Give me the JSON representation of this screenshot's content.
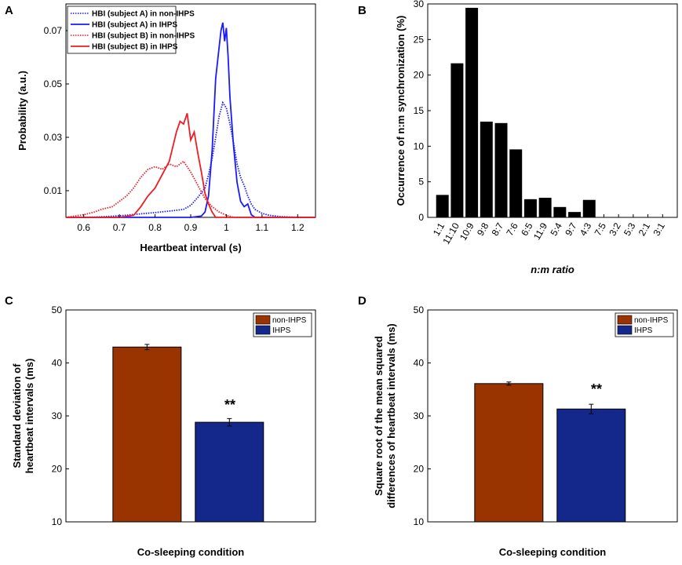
{
  "panels": {
    "a": "A",
    "b": "B",
    "c": "C",
    "d": "D"
  },
  "colors": {
    "blue": "#1a1aff",
    "red": "#ee1c25",
    "black": "#000000",
    "rust": "#993300",
    "navy": "#14288c"
  },
  "chart_data": [
    {
      "id": "A",
      "type": "line",
      "title": "",
      "xlabel": "Heartbeat interval (s)",
      "ylabel": "Probability (a.u.)",
      "xlim": [
        0.55,
        1.25
      ],
      "ylim": [
        0,
        0.08
      ],
      "xticks": [
        "0.6",
        "0.7",
        "0.8",
        "0.9",
        "1",
        "1.1",
        "1.2"
      ],
      "yticks": [
        "0.01",
        "0.03",
        "0.05",
        "0.07"
      ],
      "legend_position": "top-left",
      "series": [
        {
          "name": "HBI (subject A) in non-IHPS",
          "color": "blue",
          "style": "dotted",
          "x": [
            0.55,
            0.6,
            0.65,
            0.7,
            0.75,
            0.8,
            0.85,
            0.88,
            0.9,
            0.92,
            0.94,
            0.95,
            0.96,
            0.97,
            0.98,
            0.99,
            1.0,
            1.01,
            1.02,
            1.03,
            1.04,
            1.05,
            1.06,
            1.07,
            1.08,
            1.1,
            1.12,
            1.15,
            1.2,
            1.25
          ],
          "y": [
            0,
            0,
            0.0002,
            0.0006,
            0.0012,
            0.0018,
            0.0025,
            0.003,
            0.0045,
            0.0075,
            0.011,
            0.016,
            0.022,
            0.03,
            0.038,
            0.043,
            0.041,
            0.035,
            0.028,
            0.02,
            0.015,
            0.012,
            0.008,
            0.005,
            0.003,
            0.0015,
            0.0008,
            0.0003,
            0,
            0
          ]
        },
        {
          "name": "HBI (subject A) in IHPS",
          "color": "blue",
          "style": "solid",
          "x": [
            0.55,
            0.9,
            0.93,
            0.94,
            0.95,
            0.96,
            0.97,
            0.98,
            0.985,
            0.99,
            0.995,
            1.0,
            1.005,
            1.01,
            1.02,
            1.03,
            1.04,
            1.05,
            1.06,
            1.07,
            1.08,
            1.25
          ],
          "y": [
            0,
            0,
            0.0005,
            0.002,
            0.008,
            0.025,
            0.052,
            0.064,
            0.07,
            0.073,
            0.066,
            0.071,
            0.06,
            0.045,
            0.027,
            0.013,
            0.006,
            0.004,
            0.005,
            0.001,
            0,
            0
          ]
        },
        {
          "name": "HBI (subject B) in non-IHPS",
          "color": "red",
          "style": "dotted",
          "x": [
            0.55,
            0.6,
            0.63,
            0.65,
            0.68,
            0.7,
            0.72,
            0.74,
            0.76,
            0.78,
            0.8,
            0.82,
            0.84,
            0.86,
            0.88,
            0.9,
            0.92,
            0.94,
            0.96,
            0.98,
            1.0,
            1.02,
            1.25
          ],
          "y": [
            0,
            0.001,
            0.002,
            0.003,
            0.004,
            0.006,
            0.008,
            0.011,
            0.015,
            0.018,
            0.019,
            0.018,
            0.02,
            0.019,
            0.021,
            0.017,
            0.012,
            0.007,
            0.004,
            0.002,
            0.0008,
            0,
            0
          ]
        },
        {
          "name": "HBI (subject B) in IHPS",
          "color": "red",
          "style": "solid",
          "x": [
            0.55,
            0.7,
            0.74,
            0.76,
            0.78,
            0.8,
            0.82,
            0.84,
            0.86,
            0.87,
            0.88,
            0.89,
            0.9,
            0.91,
            0.92,
            0.93,
            0.94,
            0.95,
            0.96,
            0.97,
            1.25
          ],
          "y": [
            0,
            0,
            0.0008,
            0.004,
            0.008,
            0.011,
            0.016,
            0.021,
            0.032,
            0.036,
            0.035,
            0.039,
            0.029,
            0.032,
            0.024,
            0.017,
            0.009,
            0.005,
            0.002,
            0,
            0
          ]
        }
      ]
    },
    {
      "id": "B",
      "type": "bar",
      "title": "",
      "xlabel": "n:m ratio",
      "ylabel": "Occurrence of n:m synchronization (%)",
      "categories": [
        "1:1",
        "11:10",
        "10:9",
        "9:8",
        "8:7",
        "7:6",
        "6:5",
        "11:9",
        "5:4",
        "9:7",
        "4:3",
        "7:5",
        "3:2",
        "5:3",
        "2:1",
        "3:1"
      ],
      "values": [
        3.1,
        21.6,
        29.4,
        13.4,
        13.2,
        9.5,
        2.5,
        2.7,
        1.4,
        0.7,
        2.4,
        0,
        0,
        0,
        0,
        0
      ],
      "ylim": [
        0,
        30
      ],
      "yticks": [
        "0",
        "5",
        "10",
        "15",
        "20",
        "25",
        "30"
      ],
      "color": "black"
    },
    {
      "id": "C",
      "type": "bar",
      "title": "",
      "xlabel": "Co-sleeping condition",
      "ylabel_lines": [
        "Standard deviation of",
        "heartbeat intervals (ms)"
      ],
      "categories": [
        "non-IHPS",
        "IHPS"
      ],
      "values": [
        43,
        28.8
      ],
      "errors": [
        0.5,
        0.7
      ],
      "ylim": [
        10,
        50
      ],
      "yticks": [
        "10",
        "20",
        "30",
        "40",
        "50"
      ],
      "significance": "**",
      "legend": [
        "non-IHPS",
        "IHPS"
      ],
      "legend_position": "top-right"
    },
    {
      "id": "D",
      "type": "bar",
      "title": "",
      "xlabel": "Co-sleeping condition",
      "ylabel_lines": [
        "Square root of the mean squared",
        "differences of heartbeat intervals (ms)"
      ],
      "categories": [
        "non-IHPS",
        "IHPS"
      ],
      "values": [
        36.1,
        31.3
      ],
      "errors": [
        0.3,
        0.9
      ],
      "ylim": [
        10,
        50
      ],
      "yticks": [
        "10",
        "20",
        "30",
        "40",
        "50"
      ],
      "significance": "**",
      "legend": [
        "non-IHPS",
        "IHPS"
      ],
      "legend_position": "top-right"
    }
  ]
}
